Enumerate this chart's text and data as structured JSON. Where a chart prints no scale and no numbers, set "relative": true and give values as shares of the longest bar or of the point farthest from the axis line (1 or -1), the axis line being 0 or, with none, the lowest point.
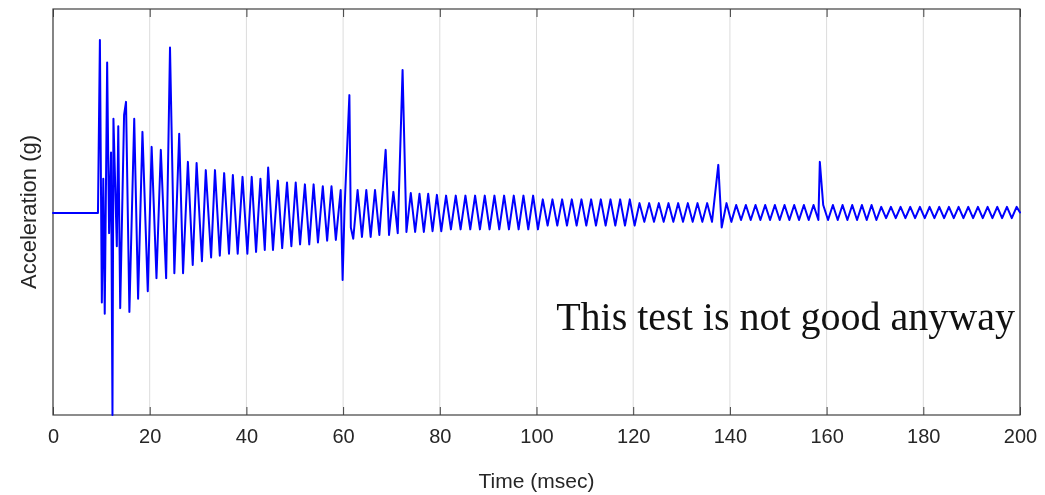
{
  "chart_data": {
    "type": "line",
    "xlabel": "Time (msec)",
    "ylabel": "Acceleration (g)",
    "relative": true,
    "xlim": [
      0,
      200
    ],
    "xticks": [
      0,
      20,
      40,
      60,
      80,
      100,
      120,
      140,
      160,
      180,
      200
    ],
    "grid": "x",
    "tick_labels": "x",
    "marker": "none",
    "line_style": "solid",
    "annotations": [
      "This test is not good anyway"
    ],
    "series": [
      {
        "color": "#0000ff",
        "x": [
          0,
          9.3,
          9.7,
          10.1,
          10.4,
          10.7,
          11.2,
          11.6,
          12.0,
          12.3,
          12.5,
          13.2,
          13.5,
          13.9,
          14.7,
          15.1,
          15.8,
          16.8,
          17.6,
          18.5,
          19.6,
          20.4,
          21.4,
          22.3,
          23.4,
          24.2,
          25.1,
          26.1,
          26.9,
          27.9,
          28.9,
          29.7,
          30.8,
          31.6,
          32.7,
          33.5,
          34.5,
          35.4,
          36.4,
          37.2,
          38.2,
          39.2,
          40.2,
          41.1,
          42.0,
          42.9,
          43.8,
          44.5,
          45.5,
          46.5,
          47.4,
          48.4,
          49.3,
          50.2,
          51.1,
          52.1,
          53.0,
          53.9,
          54.8,
          55.8,
          56.7,
          57.6,
          58.5,
          59.5,
          59.9,
          60.3,
          61.3,
          61.6,
          62.1,
          63.0,
          63.9,
          64.8,
          65.7,
          66.6,
          67.5,
          68.8,
          69.5,
          70.4,
          71.3,
          72.3,
          73.1,
          74.0,
          74.9,
          75.8,
          76.7,
          77.6,
          78.5,
          79.4,
          80.3,
          81.3,
          82.3,
          83.3,
          84.3,
          85.3,
          86.3,
          87.3,
          88.3,
          89.3,
          90.3,
          91.3,
          92.3,
          93.3,
          94.3,
          95.3,
          96.3,
          97.3,
          98.3,
          99.3,
          100.3,
          101.3,
          102.3,
          103.3,
          104.3,
          105.3,
          106.3,
          107.3,
          108.3,
          109.3,
          110.3,
          111.3,
          112.3,
          113.3,
          114.3,
          115.3,
          116.3,
          117.3,
          118.3,
          119.3,
          120.3,
          121.3,
          122.3,
          123.3,
          124.3,
          125.3,
          126.3,
          127.3,
          128.3,
          129.3,
          130.3,
          131.3,
          132.3,
          133.3,
          134.3,
          135.3,
          136.3,
          137.6,
          138.3,
          139.3,
          140.3,
          141.3,
          142.3,
          143.3,
          144.3,
          145.3,
          146.3,
          147.3,
          148.3,
          149.3,
          150.3,
          151.3,
          152.3,
          153.3,
          154.3,
          155.3,
          156.3,
          157.3,
          158.3,
          158.6,
          159.3,
          160.3,
          161.3,
          162.3,
          163.3,
          164.3,
          165.3,
          166.3,
          167.3,
          168.3,
          169.3,
          170.3,
          171.3,
          172.3,
          173.3,
          174.3,
          175.3,
          176.3,
          177.3,
          178.3,
          179.3,
          180.3,
          181.3,
          182.3,
          183.3,
          184.3,
          185.3,
          186.3,
          187.3,
          188.3,
          189.3,
          190.3,
          191.3,
          192.3,
          193.3,
          194.3,
          195.3,
          196.3,
          197.3,
          198.3,
          199.3,
          200
        ],
        "values": [
          0.539,
          0.539,
          1.0,
          0.3,
          0.63,
          0.27,
          0.94,
          0.485,
          0.7,
          0.0,
          0.79,
          0.45,
          0.77,
          0.285,
          0.8,
          0.835,
          0.275,
          0.79,
          0.31,
          0.755,
          0.33,
          0.715,
          0.365,
          0.707,
          0.365,
          0.98,
          0.378,
          0.75,
          0.378,
          0.675,
          0.4,
          0.672,
          0.41,
          0.653,
          0.42,
          0.653,
          0.425,
          0.645,
          0.43,
          0.64,
          0.43,
          0.635,
          0.43,
          0.635,
          0.435,
          0.63,
          0.44,
          0.66,
          0.44,
          0.625,
          0.445,
          0.62,
          0.45,
          0.62,
          0.455,
          0.615,
          0.455,
          0.615,
          0.46,
          0.61,
          0.465,
          0.61,
          0.467,
          0.6,
          0.36,
          0.55,
          0.853,
          0.5,
          0.47,
          0.6,
          0.475,
          0.6,
          0.475,
          0.6,
          0.48,
          0.707,
          0.48,
          0.595,
          0.485,
          0.92,
          0.488,
          0.592,
          0.488,
          0.59,
          0.488,
          0.59,
          0.49,
          0.587,
          0.49,
          0.585,
          0.495,
          0.585,
          0.495,
          0.585,
          0.495,
          0.585,
          0.495,
          0.585,
          0.495,
          0.585,
          0.495,
          0.585,
          0.495,
          0.585,
          0.495,
          0.585,
          0.495,
          0.585,
          0.495,
          0.575,
          0.505,
          0.575,
          0.505,
          0.575,
          0.505,
          0.575,
          0.505,
          0.575,
          0.505,
          0.575,
          0.505,
          0.575,
          0.505,
          0.575,
          0.505,
          0.575,
          0.505,
          0.575,
          0.505,
          0.565,
          0.515,
          0.565,
          0.515,
          0.565,
          0.515,
          0.565,
          0.515,
          0.565,
          0.515,
          0.565,
          0.515,
          0.565,
          0.515,
          0.565,
          0.515,
          0.667,
          0.5,
          0.565,
          0.515,
          0.56,
          0.52,
          0.56,
          0.52,
          0.56,
          0.52,
          0.56,
          0.52,
          0.56,
          0.52,
          0.56,
          0.52,
          0.56,
          0.52,
          0.56,
          0.52,
          0.56,
          0.52,
          0.675,
          0.56,
          0.52,
          0.56,
          0.52,
          0.56,
          0.52,
          0.56,
          0.52,
          0.56,
          0.52,
          0.56,
          0.52,
          0.555,
          0.525,
          0.555,
          0.525,
          0.555,
          0.525,
          0.555,
          0.525,
          0.555,
          0.525,
          0.555,
          0.525,
          0.555,
          0.525,
          0.555,
          0.525,
          0.555,
          0.525,
          0.555,
          0.525,
          0.555,
          0.525,
          0.555,
          0.525,
          0.555,
          0.525,
          0.555,
          0.525,
          0.555,
          0.54
        ]
      }
    ]
  }
}
